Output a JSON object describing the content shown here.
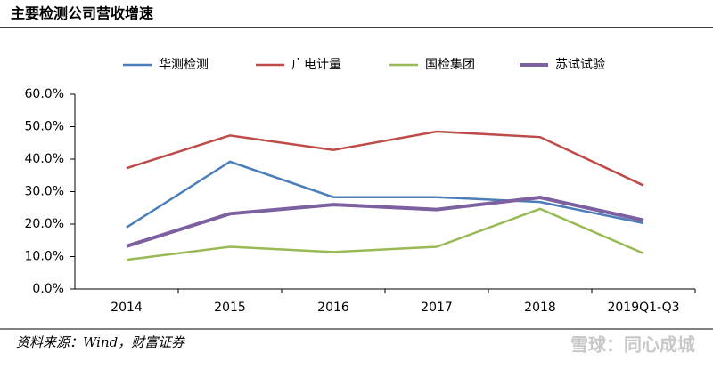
{
  "header": {
    "title": "主要检测公司营收增速"
  },
  "chart_data": {
    "type": "line",
    "categories": [
      "2014",
      "2015",
      "2016",
      "2017",
      "2018",
      "2019Q1-Q3"
    ],
    "series": [
      {
        "name": "华测检测",
        "color": "#4a7ebb",
        "values": [
          19.0,
          39.2,
          28.3,
          28.3,
          26.8,
          20.3
        ]
      },
      {
        "name": "广电计量",
        "color": "#be4b48",
        "values": [
          37.2,
          47.3,
          42.8,
          48.5,
          46.8,
          31.9
        ]
      },
      {
        "name": "国检集团",
        "color": "#98b954",
        "values": [
          9.0,
          13.0,
          11.4,
          13.0,
          24.7,
          11.0
        ]
      },
      {
        "name": "苏试试验",
        "color": "#7d60a0",
        "values": [
          13.2,
          23.2,
          26.0,
          24.5,
          28.2,
          21.2
        ]
      }
    ],
    "ylim": [
      0,
      60
    ],
    "yticks": [
      {
        "value": 0,
        "label": "0.0%"
      },
      {
        "value": 10,
        "label": "10.0%"
      },
      {
        "value": 20,
        "label": "20.0%"
      },
      {
        "value": 30,
        "label": "30.0%"
      },
      {
        "value": 40,
        "label": "40.0%"
      },
      {
        "value": 50,
        "label": "50.0%"
      },
      {
        "value": 60,
        "label": "60.0%"
      }
    ],
    "grid": false,
    "legend": "top"
  },
  "footer": {
    "source": "资料来源：Wind，财富证券",
    "watermark": "雪球：同心成城"
  }
}
